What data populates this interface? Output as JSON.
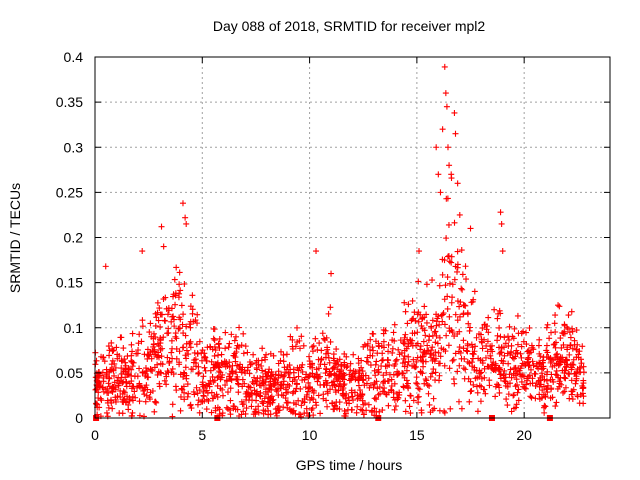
{
  "chart_data": {
    "type": "scatter",
    "title": "Day 088 of 2018, SRMTID for receiver mpl2",
    "xlabel": "GPS time / hours",
    "ylabel": "SRMTID / TECUs",
    "xlim": [
      0,
      24
    ],
    "ylim": [
      0,
      0.4
    ],
    "xticks": [
      0,
      5,
      10,
      15,
      20
    ],
    "xtick_labels": [
      "0",
      "5",
      "10",
      "15",
      "20"
    ],
    "yticks": [
      0,
      0.05,
      0.1,
      0.15,
      0.2,
      0.25,
      0.3,
      0.35,
      0.4
    ],
    "ytick_labels": [
      "0",
      "0.05",
      "0.1",
      "0.15",
      "0.2",
      "0.25",
      "0.3",
      "0.35",
      "0.4"
    ],
    "grid": true,
    "marker": "plus",
    "color": "#ff0000",
    "baseline_markers_x": [
      0.05,
      5.7,
      13.2,
      18.5,
      21.2
    ],
    "envelope": {
      "x": [
        0.0,
        0.5,
        1.0,
        1.5,
        2.0,
        2.5,
        3.0,
        3.5,
        4.0,
        4.5,
        5.0,
        5.5,
        6.0,
        6.5,
        7.0,
        7.5,
        8.0,
        8.5,
        9.0,
        9.5,
        10.0,
        10.5,
        11.0,
        11.5,
        12.0,
        12.5,
        13.0,
        13.5,
        14.0,
        14.5,
        15.0,
        15.5,
        16.0,
        16.5,
        17.0,
        17.5,
        18.0,
        18.5,
        19.0,
        19.5,
        20.0,
        20.5,
        21.0,
        21.5,
        22.0,
        22.5,
        22.8
      ],
      "center": [
        0.035,
        0.04,
        0.045,
        0.04,
        0.05,
        0.055,
        0.07,
        0.08,
        0.085,
        0.07,
        0.045,
        0.05,
        0.05,
        0.045,
        0.04,
        0.035,
        0.035,
        0.03,
        0.04,
        0.04,
        0.035,
        0.055,
        0.05,
        0.04,
        0.035,
        0.04,
        0.045,
        0.05,
        0.06,
        0.065,
        0.075,
        0.08,
        0.07,
        0.13,
        0.1,
        0.08,
        0.07,
        0.065,
        0.06,
        0.06,
        0.055,
        0.05,
        0.045,
        0.07,
        0.07,
        0.05,
        0.04
      ],
      "spread": [
        0.03,
        0.03,
        0.035,
        0.03,
        0.04,
        0.04,
        0.05,
        0.055,
        0.06,
        0.05,
        0.035,
        0.035,
        0.035,
        0.035,
        0.035,
        0.03,
        0.03,
        0.03,
        0.035,
        0.045,
        0.035,
        0.045,
        0.04,
        0.03,
        0.03,
        0.03,
        0.035,
        0.04,
        0.04,
        0.045,
        0.05,
        0.055,
        0.06,
        0.1,
        0.07,
        0.045,
        0.04,
        0.04,
        0.035,
        0.035,
        0.035,
        0.03,
        0.03,
        0.045,
        0.04,
        0.03,
        0.02
      ]
    },
    "notable_points": {
      "x": [
        0.5,
        2.2,
        3.1,
        3.2,
        4.1,
        4.2,
        4.25,
        10.3,
        11.0,
        15.1,
        15.9,
        16.0,
        16.1,
        16.2,
        16.3,
        16.35,
        16.4,
        16.45,
        16.5,
        16.6,
        16.75,
        16.8,
        16.9,
        17.0,
        17.5,
        18.9,
        18.95,
        19.0
      ],
      "y": [
        0.168,
        0.185,
        0.212,
        0.19,
        0.238,
        0.222,
        0.215,
        0.185,
        0.16,
        0.185,
        0.3,
        0.27,
        0.25,
        0.32,
        0.389,
        0.36,
        0.345,
        0.3,
        0.28,
        0.27,
        0.338,
        0.315,
        0.26,
        0.225,
        0.21,
        0.228,
        0.215,
        0.185
      ]
    }
  }
}
